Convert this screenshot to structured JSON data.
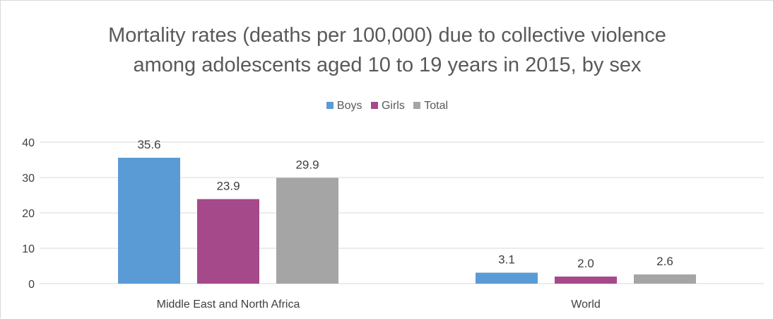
{
  "chart_data": {
    "type": "bar",
    "title": [
      "Mortality rates (deaths per 100,000) due to collective violence",
      "among adolescents aged 10 to 19 years in 2015, by sex"
    ],
    "categories": [
      "Middle East and North Africa",
      "World"
    ],
    "series": [
      {
        "name": "Boys",
        "values": [
          35.6,
          3.1
        ],
        "labels": [
          "35.6",
          "3.1"
        ],
        "color": "#5b9bd5"
      },
      {
        "name": "Girls",
        "values": [
          23.9,
          2.0
        ],
        "labels": [
          "23.9",
          "2.0"
        ],
        "color": "#a5498a"
      },
      {
        "name": "Total",
        "values": [
          29.9,
          2.6
        ],
        "labels": [
          "29.9",
          "2.6"
        ],
        "color": "#a5a5a5"
      }
    ],
    "yticks": [
      0,
      10,
      20,
      30,
      40
    ],
    "ylim": [
      0,
      40
    ],
    "grid": true,
    "legend": "top-center"
  }
}
